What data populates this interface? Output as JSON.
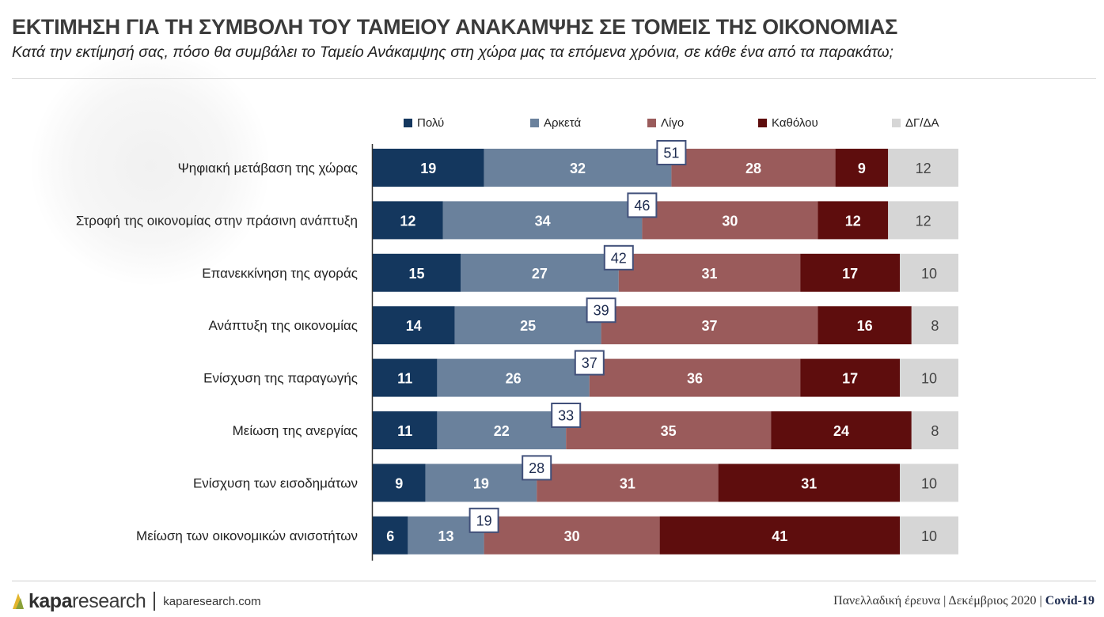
{
  "header": {
    "title": "ΕΚΤΙΜΗΣΗ ΓΙΑ ΤΗ ΣΥΜΒΟΛΗ ΤΟΥ ΤΑΜΕΙΟΥ ΑΝΑΚΑΜΨΗΣ ΣΕ ΤΟΜΕΙΣ ΤΗΣ ΟΙΚΟΝΟΜΙΑΣ",
    "subtitle": "Κατά την εκτίμησή σας, πόσο θα συμβάλει το Ταμείο Ανάκαμψης στη χώρα μας τα επόμενα χρόνια, σε κάθε ένα από τα παρακάτω;"
  },
  "colors": {
    "poly": "#14375e",
    "arketa": "#6a819c",
    "ligo": "#9a5b5b",
    "katholou": "#5e0d0d",
    "dg": "#d6d6d6",
    "callout_border": "#41507a",
    "callout_text": "#1d2b4f"
  },
  "chart_data": {
    "type": "bar",
    "orientation": "horizontal",
    "stacked": true,
    "categories": [
      "Ψηφιακή μετάβαση της χώρας",
      "Στροφή της οικονομίας στην πράσινη ανάπτυξη",
      "Επανεκκίνηση της αγοράς",
      "Ανάπτυξη της οικονομίας",
      "Ενίσχυση της παραγωγής",
      "Μείωση της ανεργίας",
      "Ενίσχυση των εισοδημάτων",
      "Μείωση των οικονομικών ανισοτήτων"
    ],
    "series": [
      {
        "name": "Πολύ",
        "color_key": "poly",
        "values": [
          19,
          12,
          15,
          14,
          11,
          11,
          9,
          6
        ]
      },
      {
        "name": "Αρκετά",
        "color_key": "arketa",
        "values": [
          32,
          34,
          27,
          25,
          26,
          22,
          19,
          13
        ]
      },
      {
        "name": "Λίγο",
        "color_key": "ligo",
        "values": [
          28,
          30,
          31,
          37,
          36,
          35,
          31,
          30
        ]
      },
      {
        "name": "Καθόλου",
        "color_key": "katholou",
        "values": [
          9,
          12,
          17,
          16,
          17,
          24,
          31,
          41
        ]
      },
      {
        "name": "ΔΓ/ΔΑ",
        "color_key": "dg",
        "values": [
          12,
          12,
          10,
          8,
          10,
          8,
          10,
          10
        ]
      }
    ],
    "totals_callout": [
      51,
      46,
      42,
      39,
      37,
      33,
      28,
      19
    ],
    "legend_position": "top",
    "grid": false
  },
  "footer": {
    "brand_bold": "kapa",
    "brand_rest": "research",
    "url": "kaparesearch.com",
    "survey": "Πανελλαδική έρευνα | Δεκέμβριος 2020 | ",
    "topic": "Covid-19"
  }
}
